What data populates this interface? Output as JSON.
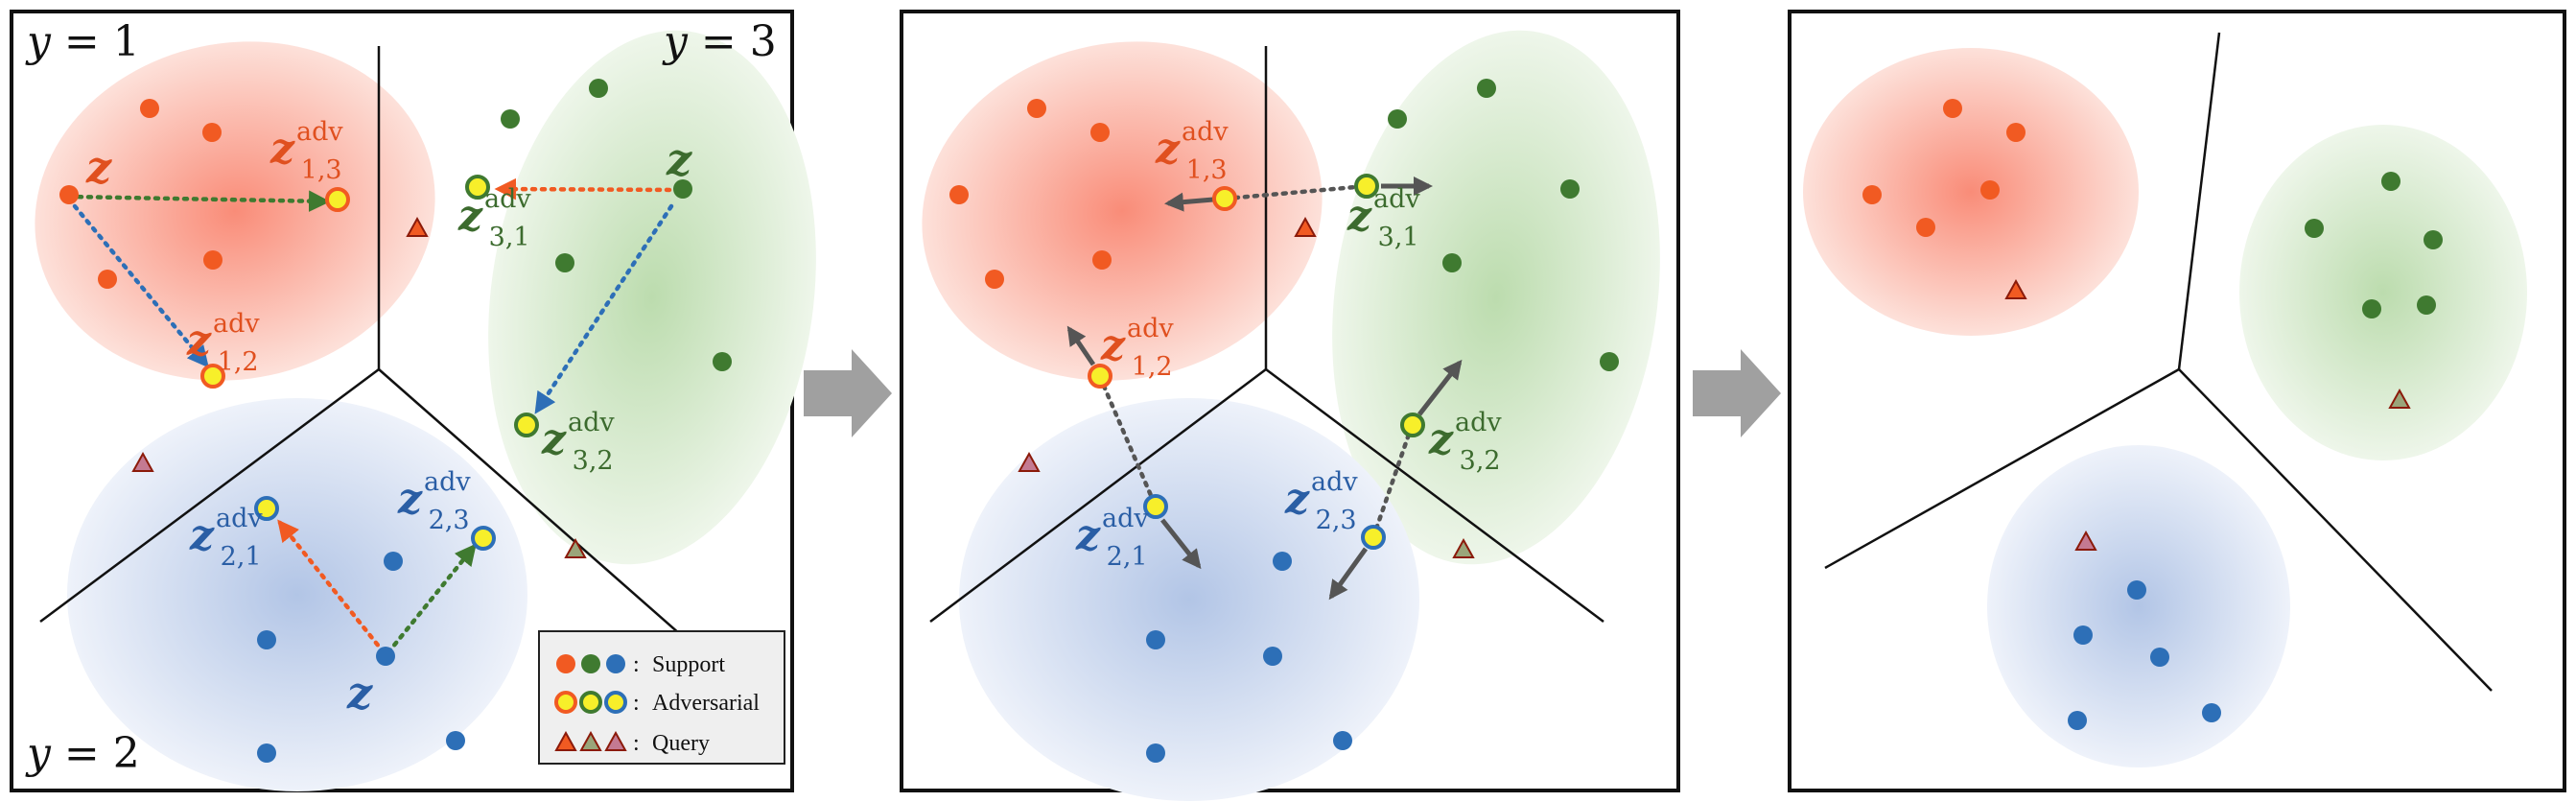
{
  "panels": {
    "left": {
      "corner_labels": [
        {
          "italic": "y",
          "rest": " = 1"
        },
        {
          "italic": "y",
          "rest": " = 3"
        },
        {
          "italic": "y",
          "rest": " = 2"
        }
      ],
      "z_labels": [
        {
          "base": "z"
        },
        {
          "base": "z"
        },
        {
          "base": "z"
        }
      ],
      "adv_labels": [
        {
          "base": "z",
          "sup": "adv",
          "sub": "1,3"
        },
        {
          "base": "z",
          "sup": "adv",
          "sub": "1,2"
        },
        {
          "base": "z",
          "sup": "adv",
          "sub": "3,1"
        },
        {
          "base": "z",
          "sup": "adv",
          "sub": "3,2"
        },
        {
          "base": "z",
          "sup": "adv",
          "sub": "2,1"
        },
        {
          "base": "z",
          "sup": "adv",
          "sub": "2,3"
        }
      ]
    },
    "middle": {
      "adv_labels": [
        {
          "base": "z",
          "sup": "adv",
          "sub": "1,3"
        },
        {
          "base": "z",
          "sup": "adv",
          "sub": "3,1"
        },
        {
          "base": "z",
          "sup": "adv",
          "sub": "1,2"
        },
        {
          "base": "z",
          "sup": "adv",
          "sub": "3,2"
        },
        {
          "base": "z",
          "sup": "adv",
          "sub": "2,3"
        },
        {
          "base": "z",
          "sup": "adv",
          "sub": "2,1"
        }
      ]
    }
  },
  "legend": {
    "separator": ":",
    "support": "Support",
    "adversarial": "Adversarial",
    "query": "Query"
  },
  "colors": {
    "class1": "#f15a22",
    "class2": "#2d6fb7",
    "class3": "#3f7a30",
    "adv_fill": "#f7ef2a",
    "label1": "#e0501f",
    "label2": "#2a5ea5",
    "label3": "#3c6b2e",
    "arrow": "#555555"
  }
}
